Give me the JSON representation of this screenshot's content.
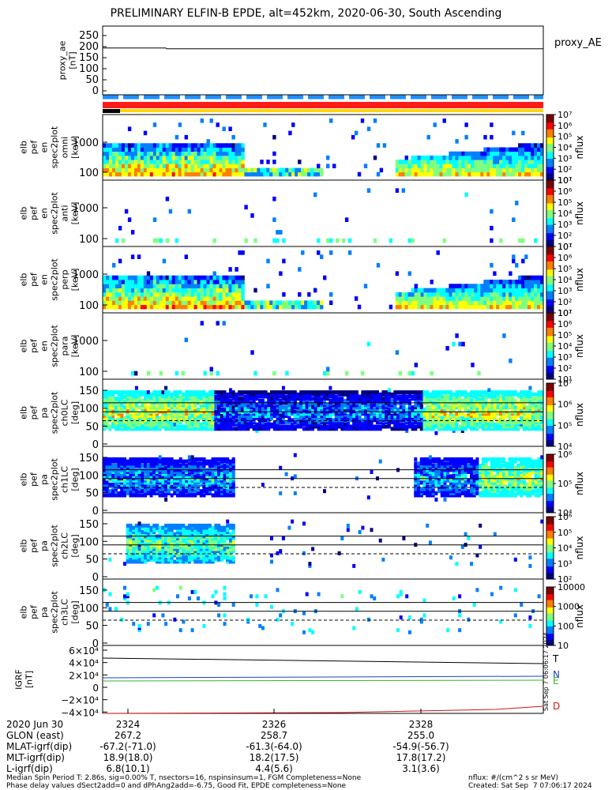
{
  "title": "PRELIMINARY ELFIN-B EPDE, alt=452km, 2020-06-30, South Ascending",
  "panels": {
    "proxy": {
      "ylabel": "proxy_ae\n[nT]",
      "ticks": [
        "250",
        "200",
        "150",
        "100",
        "50",
        "0"
      ],
      "legend": "proxy_AE",
      "value": 190
    },
    "en": {
      "ylabel": "elb\npef\nen\nspec2plot\nomni\n[keV]",
      "ticks": [
        "1000",
        "100"
      ]
    },
    "anti": {
      "ylabel": "elb\npef\nen\nspec2plot\nanti\n[keV]",
      "ticks": [
        "1000",
        "100"
      ]
    },
    "perp": {
      "ylabel": "elb\npef\nen\nspec2plot\nperp\n[keV]",
      "ticks": [
        "1000",
        "100"
      ]
    },
    "para": {
      "ylabel": "elb\npef\nen\nspec2plot\npara\n[keV]",
      "ticks": [
        "1000",
        "100"
      ]
    },
    "ch0": {
      "ylabel": "elb\npef\npa\nspec2plot\nch0LC\n[deg]",
      "ticks": [
        "150",
        "100",
        "50",
        "0"
      ]
    },
    "ch1": {
      "ylabel": "elb\npef\npa\nspec2plot\nch1LC\n[deg]",
      "ticks": [
        "150",
        "100",
        "50",
        "0"
      ]
    },
    "ch2": {
      "ylabel": "elb\npef\npa\nspec2plot\nch2LC\n[deg]",
      "ticks": [
        "150",
        "100",
        "50",
        "0"
      ]
    },
    "ch3": {
      "ylabel": "elb\npef\npa\nspec2plot\nch3LC\n[deg]",
      "ticks": [
        "150",
        "100",
        "50",
        "0"
      ]
    },
    "igrf": {
      "ylabel": "IGRF\n[nT]",
      "ticks": [
        "6×10⁴",
        "4×10⁴",
        "2×10⁴",
        "0",
        "−2×10⁴",
        "−4×10⁴"
      ],
      "legend": [
        "T",
        "N",
        "E",
        "D"
      ]
    }
  },
  "colorbars": {
    "label": "nflux",
    "a": [
      "10⁷",
      "10⁶",
      "10⁵",
      "10⁴",
      "10³",
      "10²",
      "10¹"
    ],
    "ch0": [
      "10⁷",
      "10⁶",
      "10⁵",
      "10⁴"
    ],
    "ch1": [
      "10⁶",
      "10⁵",
      "10⁴"
    ],
    "ch2": [
      "10⁶",
      "10⁵",
      "10⁴",
      "10³",
      "10²"
    ],
    "ch3": [
      "10000",
      "1000",
      "100",
      "10"
    ]
  },
  "colors": {
    "T": "#000000",
    "N": "#1f3fd0",
    "E": "#2fb82f",
    "D": "#d21414",
    "yellow_bar": "#ffd500",
    "red_bar": "#ff1a1a",
    "blue_dash": "#1e90ff",
    "orange_bar": "#ff8a00"
  },
  "xaxis": {
    "rows": [
      {
        "label": "2020 Jun 30",
        "vals": [
          "2324",
          "2326",
          "2328"
        ]
      },
      {
        "label": "GLON (east)",
        "vals": [
          "267.2",
          "258.7",
          "255.0"
        ]
      },
      {
        "label": "MLAT-igrf(dip)",
        "vals": [
          "-67.2(-71.0)",
          "-61.3(-64.0)",
          "-54.9(-56.7)"
        ]
      },
      {
        "label": "MLT-igrf(dip)",
        "vals": [
          "18.9(18.0)",
          "18.2(17.5)",
          "17.8(17.2)"
        ]
      },
      {
        "label": "L-igrf(dip)",
        "vals": [
          "6.8(10.1)",
          "4.4(5.6)",
          "3.1(3.6)"
        ]
      }
    ]
  },
  "footer": {
    "line1": "Median Spin Period T: 2.86s, sig=0.00% T, nsectors=16, nspinsinsum=1, FGM Completeness=None",
    "line2": "Phase delay values dSect2add=0 and dPhAng2add=-6.75, Good Fit, EPDE completeness=None",
    "units": "nflux: #/(cm^2 s sr MeV)",
    "created": "Created: Sat Sep  7 07:06:17 2024",
    "side_stamp": "Sat Sep  7 06:06:17 2024"
  }
}
